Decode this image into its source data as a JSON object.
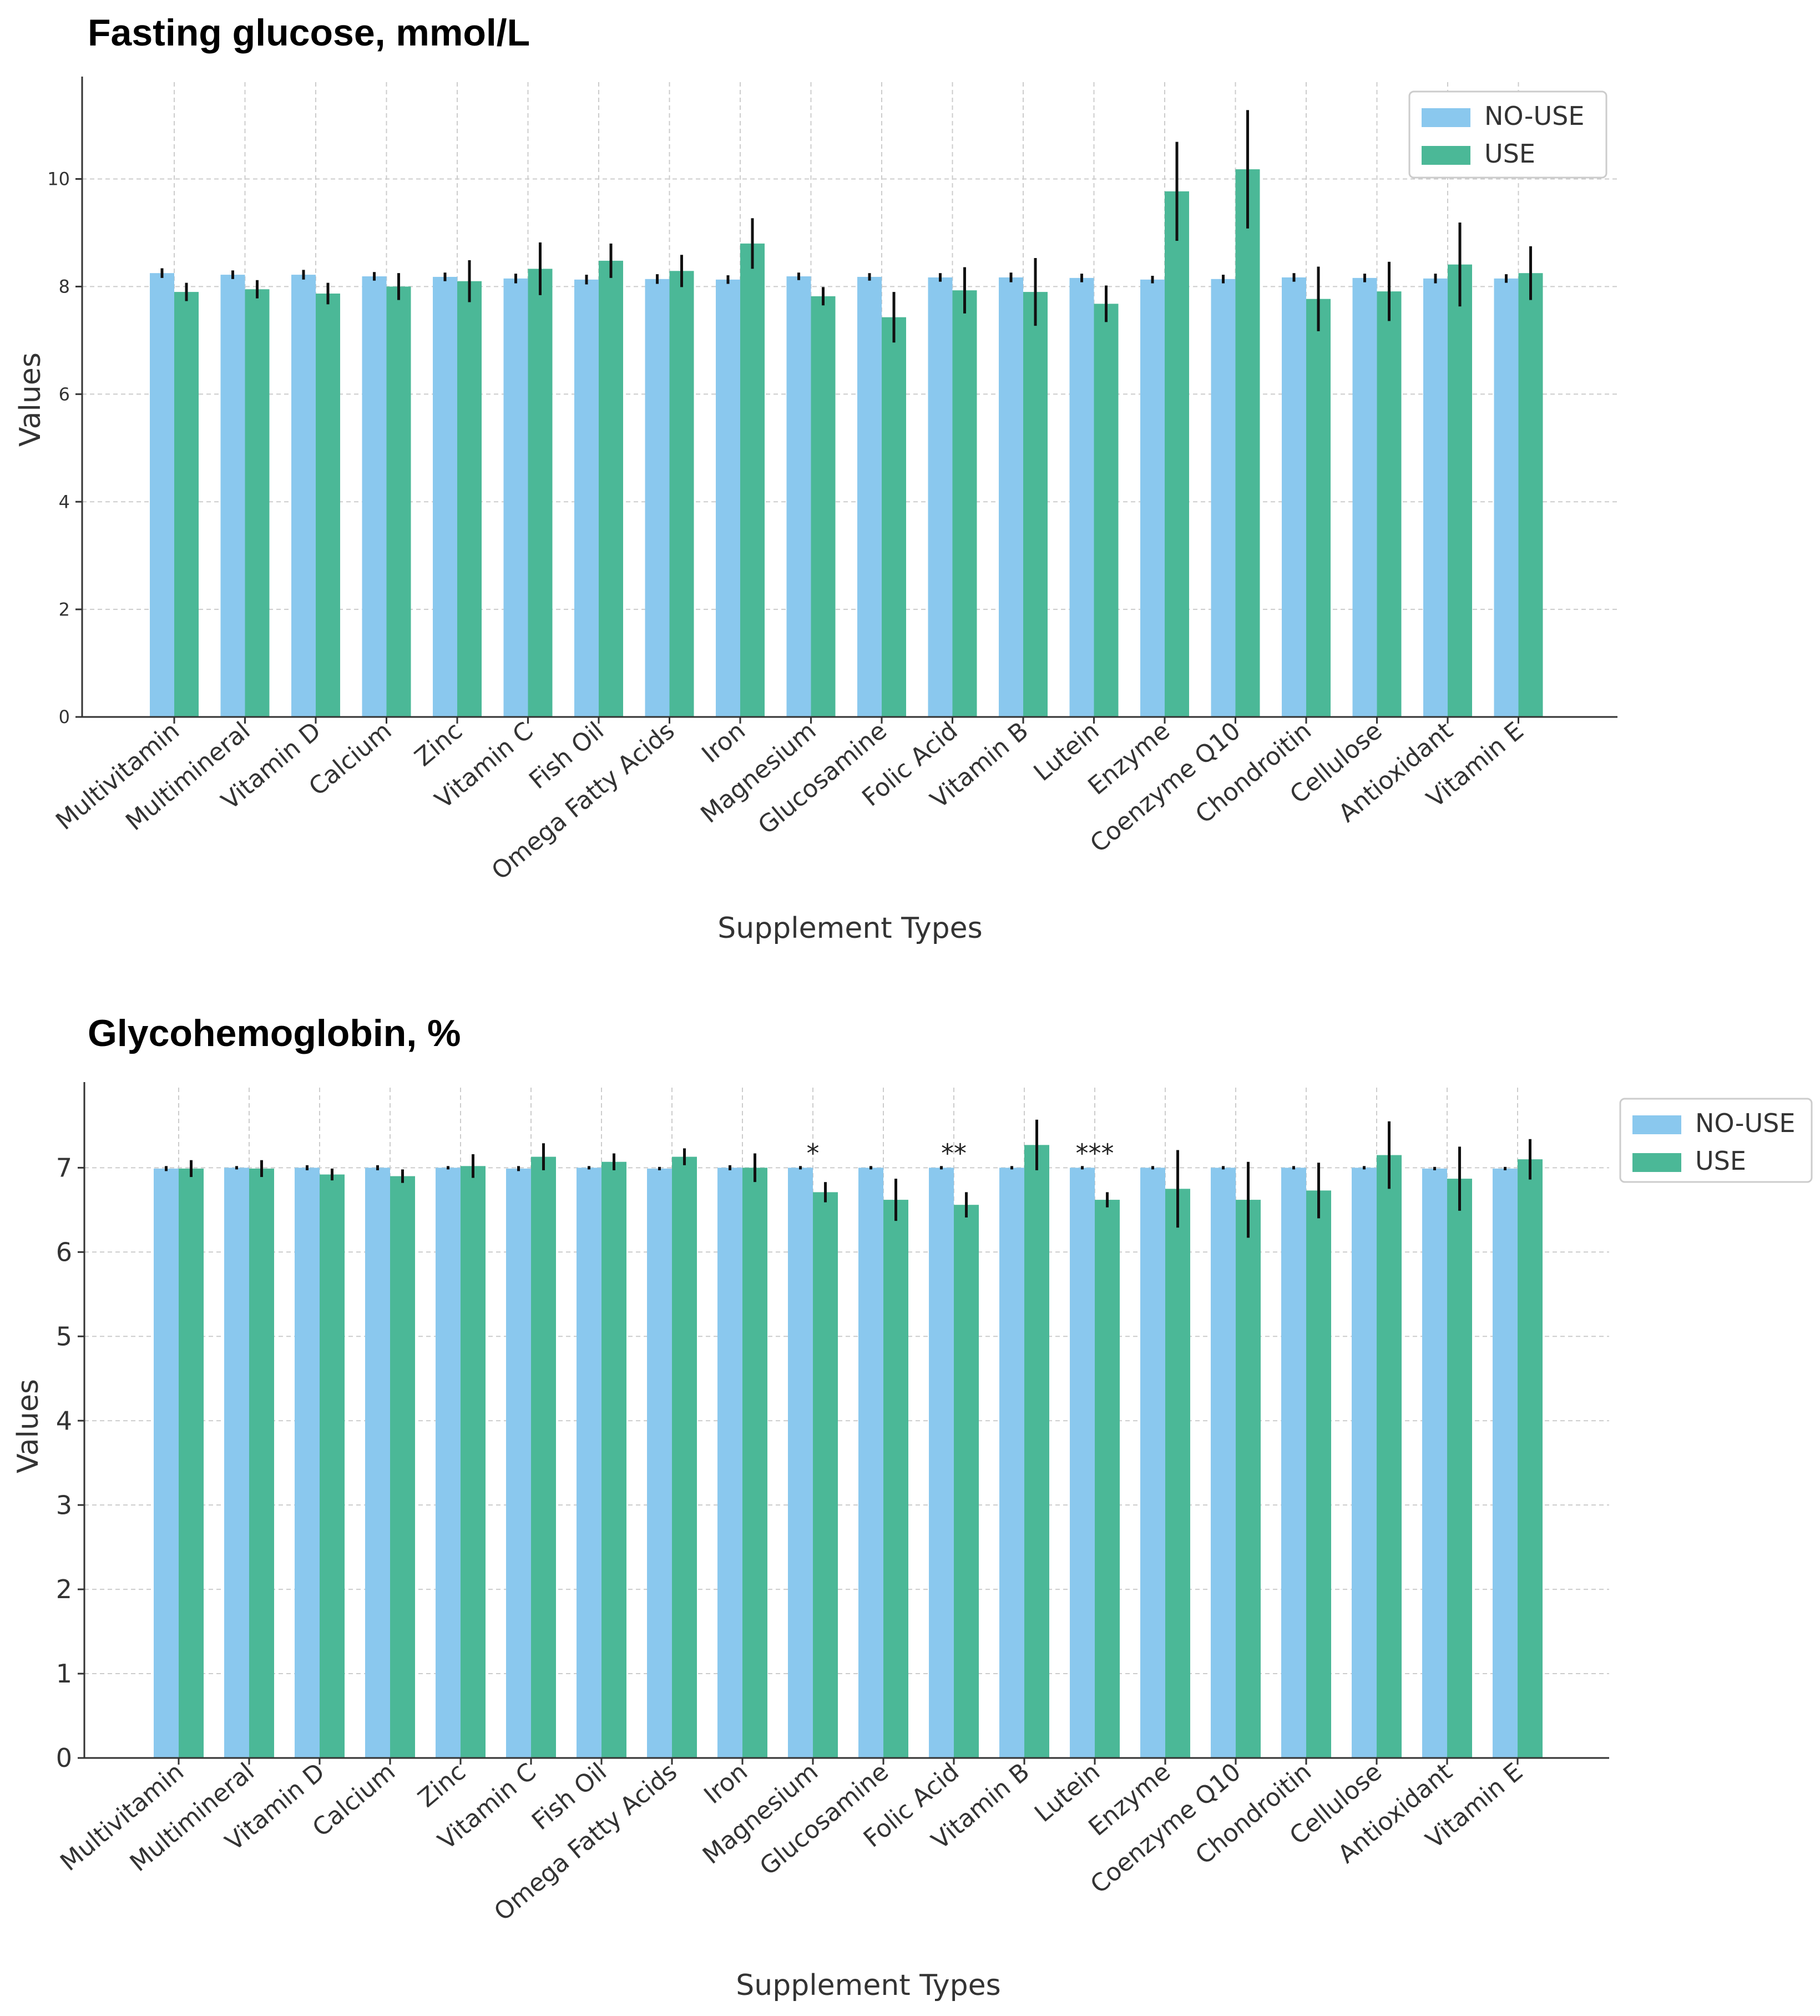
{
  "colors": {
    "no_use": "#8ac8ee",
    "use": "#4bb897"
  },
  "chart_data": [
    {
      "type": "bar",
      "title": "Fasting glucose, mmol/L",
      "xlabel": "Supplement Types",
      "ylabel": "Values",
      "ylim": [
        0,
        11.8
      ],
      "yticks": [
        "0",
        "2",
        "4",
        "6",
        "8",
        "10"
      ],
      "grid": true,
      "legend_position": "top-right",
      "categories": [
        "Multivitamin",
        "Multimineral",
        "Vitamin D",
        "Calcium",
        "Zinc",
        "Vitamin C",
        "Fish Oil",
        "Omega Fatty Acids",
        "Iron",
        "Magnesium",
        "Glucosamine",
        "Folic Acid",
        "Vitamin B",
        "Lutein",
        "Enzyme",
        "Coenzyme Q10",
        "Chondroitin",
        "Cellulose",
        "Antioxidant",
        "Vitamin E"
      ],
      "series": [
        {
          "name": "NO-USE",
          "values": [
            8.25,
            8.22,
            8.22,
            8.19,
            8.18,
            8.15,
            8.13,
            8.14,
            8.13,
            8.19,
            8.18,
            8.17,
            8.17,
            8.16,
            8.13,
            8.14,
            8.17,
            8.16,
            8.15,
            8.15
          ],
          "errors": [
            0.09,
            0.08,
            0.09,
            0.08,
            0.08,
            0.09,
            0.09,
            0.09,
            0.08,
            0.07,
            0.07,
            0.08,
            0.09,
            0.08,
            0.07,
            0.08,
            0.08,
            0.08,
            0.09,
            0.08
          ]
        },
        {
          "name": "USE",
          "values": [
            7.9,
            7.95,
            7.87,
            8.0,
            8.1,
            8.33,
            8.48,
            8.29,
            8.8,
            7.82,
            7.43,
            7.93,
            7.9,
            7.68,
            9.77,
            10.18,
            7.77,
            7.91,
            8.41,
            8.25
          ],
          "errors": [
            0.17,
            0.17,
            0.2,
            0.25,
            0.39,
            0.49,
            0.32,
            0.3,
            0.47,
            0.17,
            0.47,
            0.43,
            0.63,
            0.34,
            0.92,
            1.1,
            0.6,
            0.55,
            0.78,
            0.5
          ]
        }
      ],
      "annotations": []
    },
    {
      "type": "bar",
      "title": "Glycohemoglobin, %",
      "xlabel": "Supplement Types",
      "ylabel": "Values",
      "ylim": [
        0,
        7.95
      ],
      "yticks": [
        "0",
        "1",
        "2",
        "3",
        "4",
        "5",
        "6",
        "7"
      ],
      "grid": true,
      "legend_position": "top-right",
      "categories": [
        "Multivitamin",
        "Multimineral",
        "Vitamin D",
        "Calcium",
        "Zinc",
        "Vitamin C",
        "Fish Oil",
        "Omega Fatty Acids",
        "Iron",
        "Magnesium",
        "Glucosamine",
        "Folic Acid",
        "Vitamin B",
        "Lutein",
        "Enzyme",
        "Coenzyme Q10",
        "Chondroitin",
        "Cellulose",
        "Antioxidant",
        "Vitamin E"
      ],
      "series": [
        {
          "name": "NO-USE",
          "values": [
            6.99,
            7.0,
            7.0,
            7.0,
            7.0,
            6.99,
            7.0,
            6.99,
            7.0,
            7.0,
            7.0,
            7.0,
            7.0,
            7.0,
            7.0,
            7.0,
            7.0,
            7.0,
            6.99,
            6.99
          ],
          "errors": [
            0.03,
            0.02,
            0.03,
            0.03,
            0.02,
            0.03,
            0.02,
            0.02,
            0.03,
            0.02,
            0.02,
            0.02,
            0.02,
            0.02,
            0.02,
            0.02,
            0.02,
            0.02,
            0.02,
            0.02
          ]
        },
        {
          "name": "USE",
          "values": [
            6.99,
            6.99,
            6.92,
            6.9,
            7.02,
            7.13,
            7.07,
            7.13,
            7.0,
            6.71,
            6.62,
            6.56,
            7.27,
            6.62,
            6.75,
            6.62,
            6.73,
            7.15,
            6.87,
            7.1
          ],
          "errors": [
            0.1,
            0.1,
            0.07,
            0.08,
            0.14,
            0.16,
            0.1,
            0.1,
            0.17,
            0.12,
            0.25,
            0.15,
            0.3,
            0.09,
            0.46,
            0.45,
            0.33,
            0.4,
            0.38,
            0.24
          ]
        }
      ],
      "annotations": [
        {
          "category_index": 9,
          "text": "*"
        },
        {
          "category_index": 11,
          "text": "**"
        },
        {
          "category_index": 13,
          "text": "***"
        }
      ]
    }
  ]
}
